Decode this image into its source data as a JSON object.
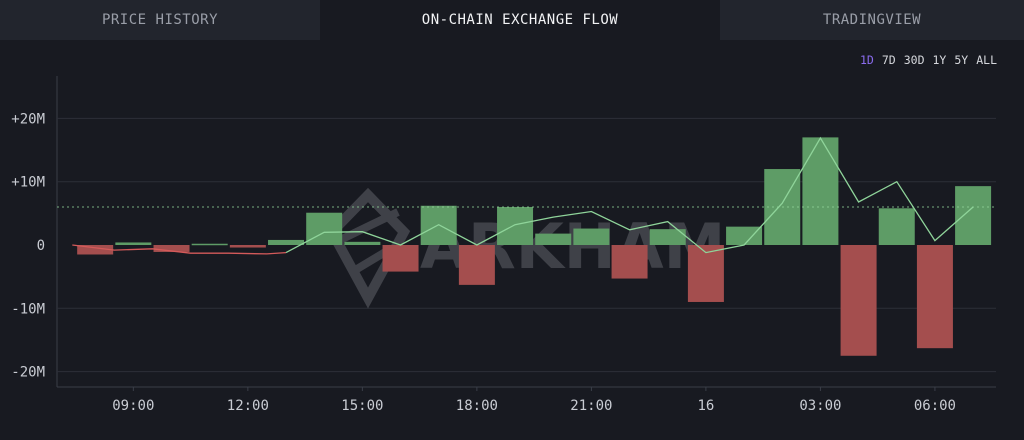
{
  "tabs": [
    {
      "label": "PRICE HISTORY",
      "active": false
    },
    {
      "label": "ON-CHAIN EXCHANGE FLOW",
      "active": true
    },
    {
      "label": "TRADINGVIEW",
      "active": false
    }
  ],
  "ranges": [
    {
      "label": "1D",
      "active": true
    },
    {
      "label": "7D",
      "active": false
    },
    {
      "label": "30D",
      "active": false
    },
    {
      "label": "1Y",
      "active": false
    },
    {
      "label": "5Y",
      "active": false
    },
    {
      "label": "ALL",
      "active": false
    }
  ],
  "watermark": "ARKHAM",
  "colors": {
    "inflow": "#5e9c66",
    "outflow": "#a44e4e",
    "cumulative_up": "#8fd49a",
    "cumulative_down": "#d45a5a",
    "reference": "#8fd49a"
  },
  "chart_data": {
    "type": "bar",
    "xlabel": "",
    "ylabel": "",
    "ylim": [
      -22,
      26
    ],
    "y_ticks": [
      20,
      10,
      0,
      -10,
      -20
    ],
    "y_tick_labels": [
      "+20M",
      "+10M",
      "0",
      "-10M",
      "-20M"
    ],
    "grid": true,
    "x_ticks": [
      "09:00",
      "12:00",
      "15:00",
      "18:00",
      "21:00",
      "16",
      "03:00",
      "06:00"
    ],
    "x_tick_hours": [
      9,
      12,
      15,
      18,
      21,
      24,
      27,
      30
    ],
    "x_range_hours": [
      7,
      31.6
    ],
    "bar_hours": [
      8,
      9,
      10,
      11,
      12,
      13,
      14,
      15,
      16,
      17,
      18,
      19,
      20,
      21,
      22,
      23,
      24,
      25,
      26,
      27,
      28,
      29,
      30,
      31
    ],
    "bar_values": [
      -1.5,
      0.4,
      -1.1,
      0.2,
      -0.4,
      0.8,
      5.1,
      0.5,
      -4.2,
      6.2,
      -6.3,
      6.0,
      1.8,
      2.6,
      -5.3,
      2.5,
      -9.0,
      2.9,
      12.0,
      17.0,
      -17.5,
      5.8,
      -16.3,
      9.3
    ],
    "series": [
      {
        "name": "",
        "line_hours": [
          7.4,
          8.5,
          9.5,
          10.5,
          11.5,
          12.5,
          13,
          14,
          15,
          16,
          17,
          18,
          19,
          20,
          21,
          22,
          23,
          24,
          25,
          26,
          27,
          28,
          29,
          30,
          31
        ],
        "line_values": [
          0,
          -0.8,
          -0.6,
          -1.3,
          -1.3,
          -1.4,
          -1.2,
          2.0,
          2.1,
          0,
          3.2,
          0,
          3.2,
          4.4,
          5.3,
          2.4,
          3.7,
          -1.2,
          0,
          6.6,
          16.9,
          6.8,
          10.0,
          0.7,
          6.0
        ]
      }
    ],
    "reference_line": 6.0
  }
}
